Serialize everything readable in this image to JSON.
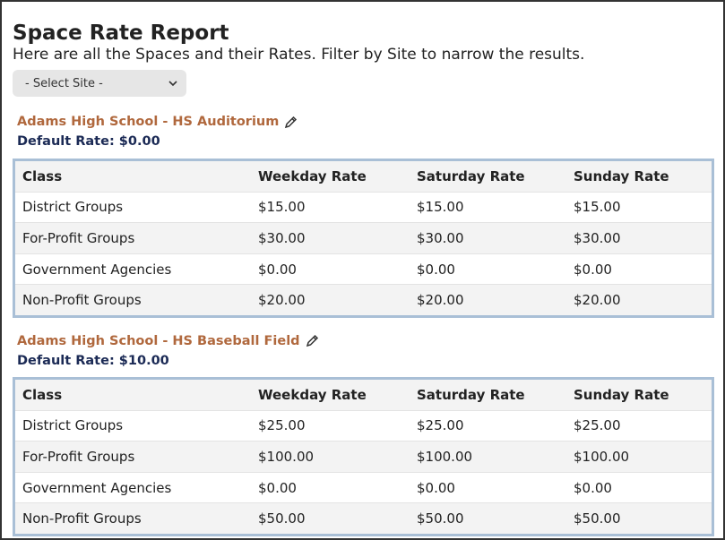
{
  "header": {
    "title": "Space Rate Report",
    "subtitle": "Here are all the Spaces and their Rates. Filter by Site to narrow the results."
  },
  "filter": {
    "placeholder": "- Select Site -"
  },
  "sections": [
    {
      "name": "Adams High School - HS Auditorium",
      "default_rate": "Default Rate: $0.00",
      "table": {
        "columns": [
          "Class",
          "Weekday Rate",
          "Saturday Rate",
          "Sunday Rate"
        ],
        "rows": [
          [
            "District Groups",
            "$15.00",
            "$15.00",
            "$15.00"
          ],
          [
            "For-Profit Groups",
            "$30.00",
            "$30.00",
            "$30.00"
          ],
          [
            "Government Agencies",
            "$0.00",
            "$0.00",
            "$0.00"
          ],
          [
            "Non-Profit Groups",
            "$20.00",
            "$20.00",
            "$20.00"
          ]
        ]
      }
    },
    {
      "name": "Adams High School - HS Baseball Field",
      "default_rate": "Default Rate: $10.00",
      "table": {
        "columns": [
          "Class",
          "Weekday Rate",
          "Saturday Rate",
          "Sunday Rate"
        ],
        "rows": [
          [
            "District Groups",
            "$25.00",
            "$25.00",
            "$25.00"
          ],
          [
            "For-Profit Groups",
            "$100.00",
            "$100.00",
            "$100.00"
          ],
          [
            "Government Agencies",
            "$0.00",
            "$0.00",
            "$0.00"
          ],
          [
            "Non-Profit Groups",
            "$50.00",
            "$50.00",
            "$50.00"
          ]
        ]
      }
    }
  ]
}
